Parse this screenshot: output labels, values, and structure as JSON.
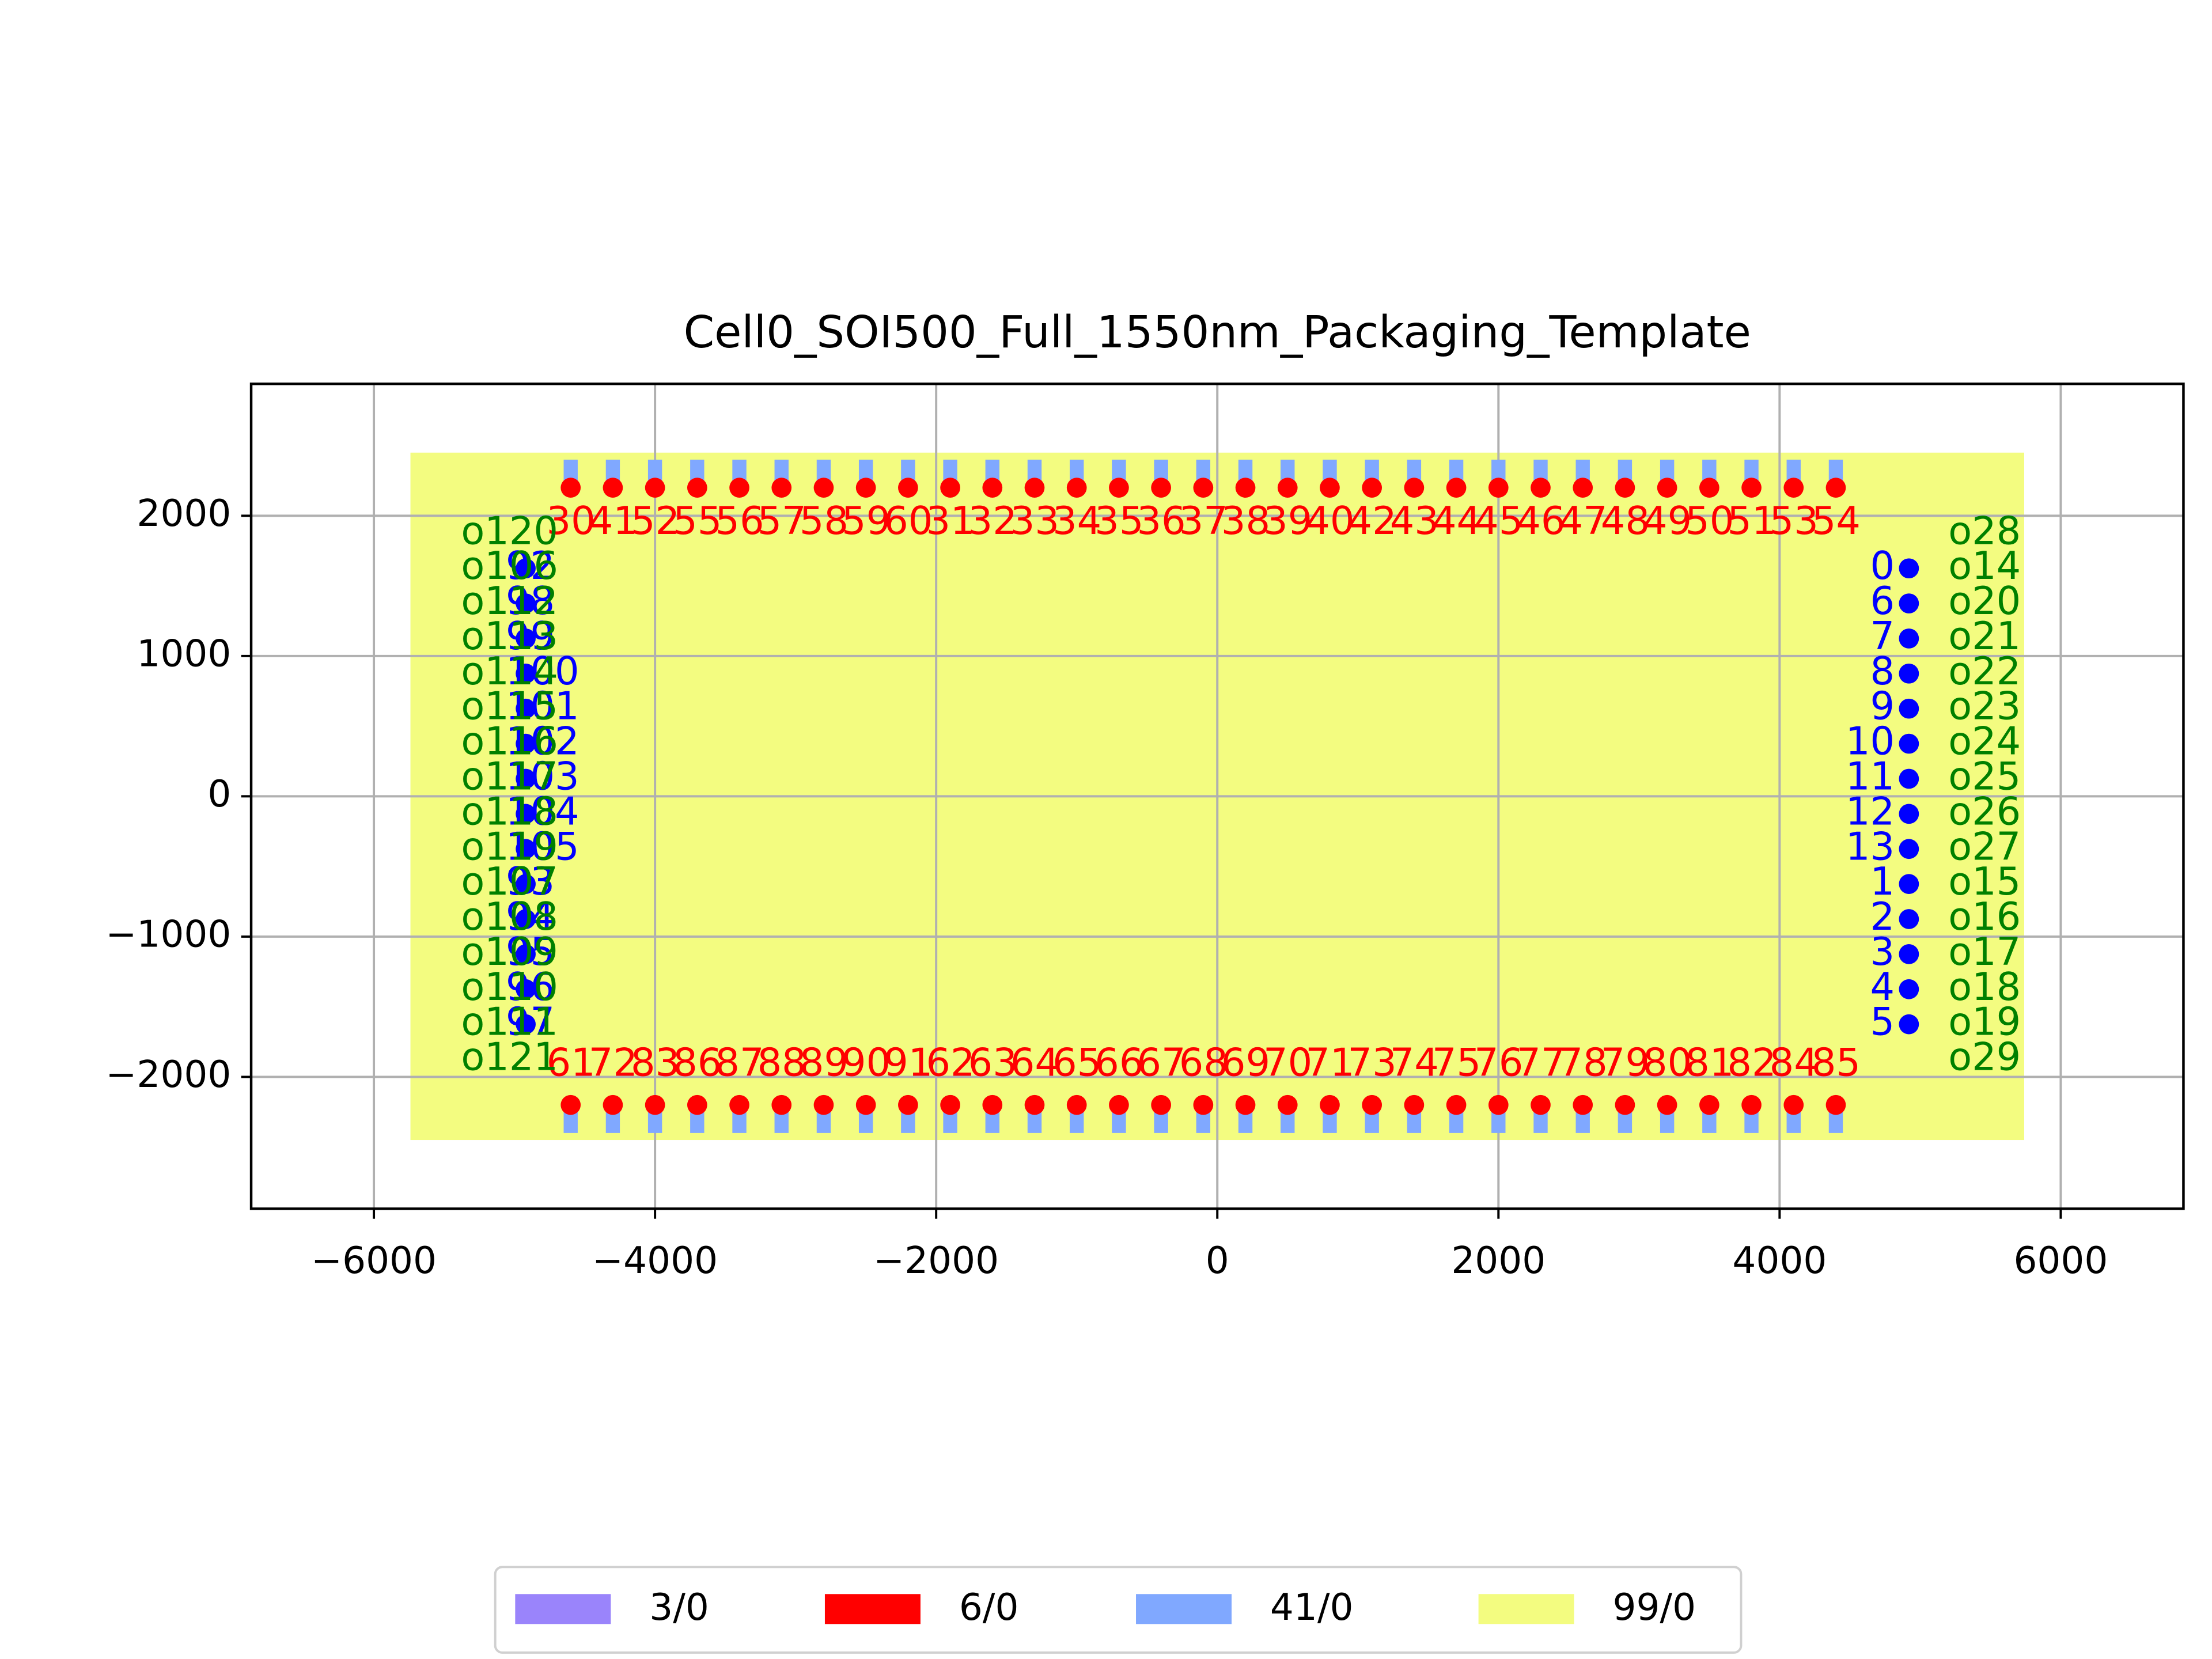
{
  "chart_data": {
    "type": "layout",
    "title": "Cell0_SOI500_Full_1550nm_Packaging_Template",
    "xlim": [
      -6873,
      6873
    ],
    "ylim": [
      -2940,
      2940
    ],
    "xticks": [
      {
        "value": -6000,
        "label": "−6000"
      },
      {
        "value": -4000,
        "label": "−4000"
      },
      {
        "value": -2000,
        "label": "−2000"
      },
      0,
      2000,
      4000,
      6000
    ],
    "yticks": [
      {
        "value": -2000,
        "label": "−2000"
      },
      {
        "value": -1000,
        "label": "−1000"
      },
      0,
      1000,
      2000
    ],
    "grid": true,
    "legend_position": "lower center",
    "layers": [
      {
        "name": "3/0",
        "color": "#9a84fb"
      },
      {
        "name": "6/0",
        "color": "#ff0000"
      },
      {
        "name": "41/0",
        "color": "#80a8ff"
      },
      {
        "name": "99/0",
        "color": "#f3fc80"
      }
    ],
    "floorplan": {
      "x": [
        -5740,
        5740
      ],
      "y": [
        -2450,
        2450
      ]
    },
    "pad_width": 100,
    "electrical_top": {
      "color": "#ff0000",
      "pad_y": [
        2200,
        2400
      ],
      "labels": [
        "30",
        "41",
        "52",
        "55",
        "56",
        "57",
        "58",
        "59",
        "60",
        "31",
        "32",
        "33",
        "34",
        "35",
        "36",
        "37",
        "38",
        "39",
        "40",
        "42",
        "43",
        "44",
        "45",
        "46",
        "47",
        "48",
        "49",
        "50",
        "51",
        "53",
        "54"
      ],
      "x": [
        -4600,
        -4300,
        -4000,
        -3700,
        -3400,
        -3100,
        -2800,
        -2500,
        -2200,
        -1900,
        -1600,
        -1300,
        -1000,
        -700,
        -400,
        -100,
        200,
        500,
        800,
        1100,
        1400,
        1700,
        2000,
        2300,
        2600,
        2900,
        3200,
        3500,
        3800,
        4100,
        4400
      ],
      "y": [
        2200,
        2200,
        2200,
        2200,
        2200,
        2200,
        2200,
        2200,
        2200,
        2200,
        2200,
        2200,
        2200,
        2200,
        2200,
        2200,
        2200,
        2200,
        2200,
        2200,
        2200,
        2200,
        2200,
        2200,
        2200,
        2200,
        2200,
        2200,
        2200,
        2200,
        2200
      ]
    },
    "electrical_bottom": {
      "color": "#ff0000",
      "pad_y": [
        -2400,
        -2200
      ],
      "labels": [
        "61",
        "72",
        "83",
        "86",
        "87",
        "88",
        "89",
        "90",
        "91",
        "62",
        "63",
        "64",
        "65",
        "66",
        "67",
        "68",
        "69",
        "70",
        "71",
        "73",
        "74",
        "75",
        "76",
        "77",
        "78",
        "79",
        "80",
        "81",
        "82",
        "84",
        "85"
      ],
      "x": [
        -4600,
        -4300,
        -4000,
        -3700,
        -3400,
        -3100,
        -2800,
        -2500,
        -2200,
        -1900,
        -1600,
        -1300,
        -1000,
        -700,
        -400,
        -100,
        200,
        500,
        800,
        1100,
        1400,
        1700,
        2000,
        2300,
        2600,
        2900,
        3200,
        3500,
        3800,
        4100,
        4400
      ],
      "y": [
        -2200,
        -2200,
        -2200,
        -2200,
        -2200,
        -2200,
        -2200,
        -2200,
        -2200,
        -2200,
        -2200,
        -2200,
        -2200,
        -2200,
        -2200,
        -2200,
        -2200,
        -2200,
        -2200,
        -2200,
        -2200,
        -2200,
        -2200,
        -2200,
        -2200,
        -2200,
        -2200,
        -2200,
        -2200,
        -2200,
        -2200
      ]
    },
    "optical_right": {
      "color": "#0000ff",
      "labels": [
        "0",
        "6",
        "7",
        "8",
        "9",
        "10",
        "11",
        "12",
        "13",
        "1",
        "2",
        "3",
        "4",
        "5"
      ],
      "x": [
        4920,
        4920,
        4920,
        4920,
        4920,
        4920,
        4920,
        4920,
        4920,
        4920,
        4920,
        4920,
        4920,
        4920
      ],
      "y": [
        1625,
        1375,
        1125,
        875,
        625,
        375,
        125,
        -125,
        -375,
        -625,
        -875,
        -1125,
        -1375,
        -1625
      ]
    },
    "optical_left": {
      "color": "#0000ff",
      "labels": [
        "92",
        "98",
        "99",
        "100",
        "101",
        "102",
        "103",
        "104",
        "105",
        "93",
        "94",
        "95",
        "96",
        "97"
      ],
      "x": [
        -4920,
        -4920,
        -4920,
        -4920,
        -4920,
        -4920,
        -4920,
        -4920,
        -4920,
        -4920,
        -4920,
        -4920,
        -4920,
        -4920
      ],
      "y": [
        1625,
        1375,
        1125,
        875,
        625,
        375,
        125,
        -125,
        -375,
        -625,
        -875,
        -1125,
        -1375,
        -1625
      ]
    },
    "fiber_right": {
      "color": "#008000",
      "labels": [
        "o28",
        "o14",
        "o20",
        "o21",
        "o22",
        "o23",
        "o24",
        "o25",
        "o26",
        "o27",
        "o15",
        "o16",
        "o17",
        "o18",
        "o19",
        "o29"
      ],
      "x": [
        5200,
        5200,
        5200,
        5200,
        5200,
        5200,
        5200,
        5200,
        5200,
        5200,
        5200,
        5200,
        5200,
        5200,
        5200,
        5200
      ],
      "y": [
        1875,
        1625,
        1375,
        1125,
        875,
        625,
        375,
        125,
        -125,
        -375,
        -625,
        -875,
        -1125,
        -1375,
        -1625,
        -1875
      ]
    },
    "fiber_left": {
      "color": "#008000",
      "labels": [
        "o120",
        "o106",
        "o112",
        "o113",
        "o114",
        "o115",
        "o116",
        "o117",
        "o118",
        "o119",
        "o107",
        "o108",
        "o109",
        "o110",
        "o111",
        "o121"
      ],
      "x": [
        -5380,
        -5380,
        -5380,
        -5380,
        -5380,
        -5380,
        -5380,
        -5380,
        -5380,
        -5380,
        -5380,
        -5380,
        -5380,
        -5380,
        -5380,
        -5380
      ],
      "y": [
        1875,
        1625,
        1375,
        1125,
        875,
        625,
        375,
        125,
        -125,
        -375,
        -625,
        -875,
        -1125,
        -1375,
        -1625,
        -1875
      ]
    }
  }
}
